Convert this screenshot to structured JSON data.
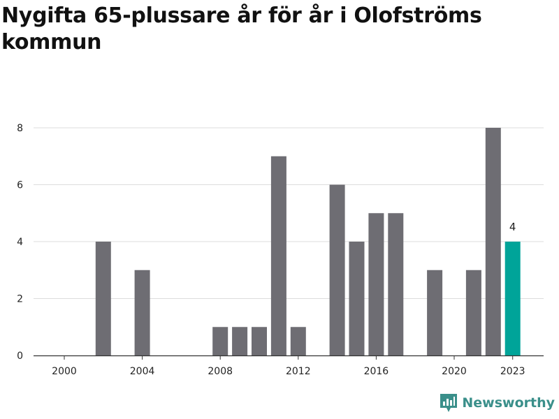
{
  "title": "Nygifta 65-plussare år för år i Olofströms kommun",
  "brand": {
    "name": "Newsworthy",
    "icon": "newsworthy-logo-icon",
    "color": "#3a8f8a"
  },
  "colors": {
    "bar": "#6e6d73",
    "highlight": "#00a499",
    "grid": "#dcdcdc",
    "axis": "#333333"
  },
  "chart_data": {
    "type": "bar",
    "title": "Nygifta 65-plussare år för år i Olofströms kommun",
    "xlabel": "",
    "ylabel": "",
    "categories": [
      2000,
      2001,
      2002,
      2003,
      2004,
      2005,
      2006,
      2007,
      2008,
      2009,
      2010,
      2011,
      2012,
      2013,
      2014,
      2015,
      2016,
      2017,
      2018,
      2019,
      2020,
      2021,
      2022,
      2023
    ],
    "values": [
      0,
      0,
      4,
      0,
      3,
      0,
      0,
      0,
      1,
      1,
      1,
      7,
      1,
      0,
      6,
      4,
      5,
      5,
      0,
      3,
      0,
      3,
      8,
      4
    ],
    "highlight": {
      "category": 2023,
      "value": 4,
      "label": "4"
    },
    "x_ticks": [
      "2000",
      "2004",
      "2008",
      "2012",
      "2016",
      "2020",
      "2023"
    ],
    "y_ticks": [
      "0",
      "2",
      "4",
      "6",
      "8"
    ],
    "ylim": [
      0,
      8
    ],
    "grid": true,
    "legend": "none"
  }
}
